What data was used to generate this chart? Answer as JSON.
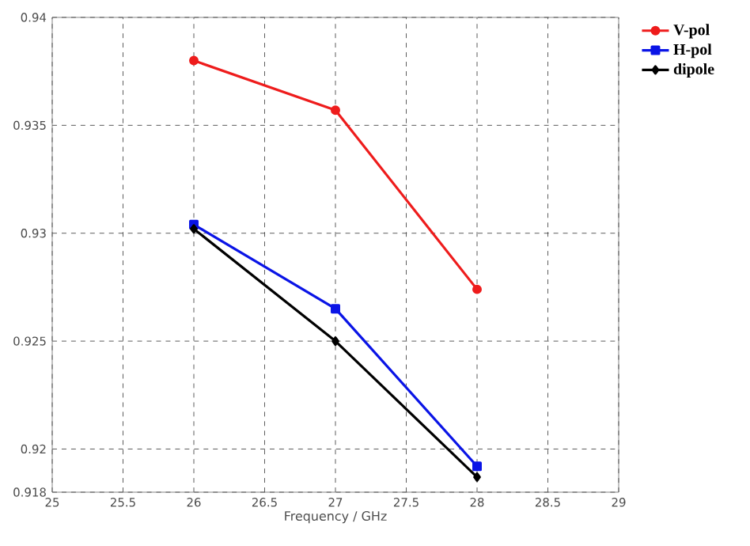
{
  "chart_data": {
    "type": "line",
    "xlabel": "Frequency / GHz",
    "x": [
      26,
      27,
      28
    ],
    "series": [
      {
        "name": "V-pol",
        "color": "#ee1c1c",
        "marker": "circle",
        "values": [
          0.938,
          0.9357,
          0.9274
        ]
      },
      {
        "name": "H-pol",
        "color": "#0a14e6",
        "marker": "square",
        "values": [
          0.9304,
          0.9265,
          0.9192
        ]
      },
      {
        "name": "dipole",
        "color": "#000000",
        "marker": "diamond",
        "values": [
          0.9302,
          0.925,
          0.9187
        ]
      }
    ],
    "xlim": [
      25,
      29
    ],
    "xticks": [
      25,
      25.5,
      26,
      26.5,
      27,
      27.5,
      28,
      28.5,
      29
    ],
    "ylim": [
      0.918,
      0.94
    ],
    "yticks": [
      0.918,
      0.92,
      0.925,
      0.93,
      0.935,
      0.94
    ],
    "grid": true,
    "legend": "top right",
    "line_style": "solid"
  }
}
